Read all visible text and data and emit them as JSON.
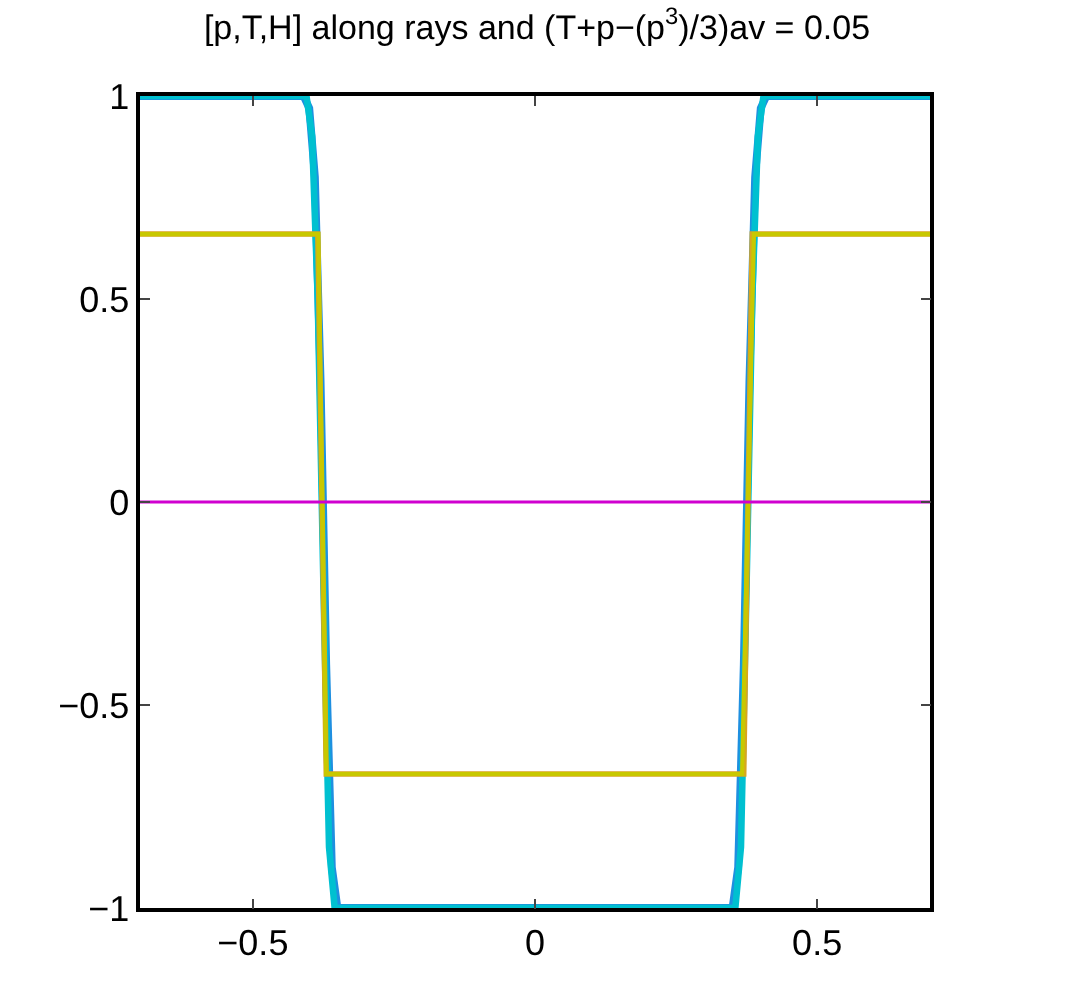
{
  "chart_data": {
    "type": "line",
    "title": "[p,T,H] along rays and (T+p−(p$^{3}$)/3)av = 0.05",
    "xlim": [
      -0.7,
      0.7
    ],
    "ylim": [
      -1,
      1
    ],
    "xticks": [
      {
        "value": -0.5,
        "label": "−0.5"
      },
      0,
      0.5
    ],
    "yticks": [
      {
        "value": -1,
        "label": "−1"
      },
      {
        "value": -0.5,
        "label": "−0.5"
      },
      0,
      0.5,
      1
    ],
    "legend": false,
    "marker": "none",
    "line_style": "solid",
    "series": [
      {
        "color": "#1f8fe0",
        "x": [
          -0.7,
          -0.41,
          -0.4,
          -0.39,
          -0.38,
          -0.37,
          -0.36,
          -0.35,
          0.35,
          0.36,
          0.37,
          0.38,
          0.39,
          0.4,
          0.41,
          0.7
        ],
        "values": [
          1,
          1,
          0.97,
          0.8,
          0.3,
          -0.4,
          -0.9,
          -1,
          -1,
          -0.9,
          -0.4,
          0.3,
          0.8,
          0.97,
          1,
          1
        ]
      },
      {
        "color": "#00c0d0",
        "x": [
          -0.7,
          -0.405,
          -0.395,
          -0.385,
          -0.375,
          -0.365,
          -0.355,
          0.355,
          0.365,
          0.375,
          0.385,
          0.395,
          0.405,
          0.7
        ],
        "values": [
          1,
          1,
          0.9,
          0.5,
          -0.2,
          -0.85,
          -1,
          -1,
          -0.85,
          -0.2,
          0.5,
          0.9,
          1,
          1
        ]
      },
      {
        "color": "#d9a520",
        "x": [
          -0.7,
          -0.385,
          -0.37,
          0.37,
          0.385,
          0.7
        ],
        "values": [
          0.66,
          0.66,
          -0.67,
          -0.67,
          0.66,
          0.66
        ]
      },
      {
        "color": "#c8c800",
        "x": [
          -0.7,
          -0.384,
          -0.37,
          0.367,
          0.388,
          0.7
        ],
        "values": [
          0.66,
          0.66,
          -0.67,
          -0.67,
          0.66,
          0.66
        ]
      },
      {
        "color": "#d000d0",
        "x": [
          -0.7,
          0.7
        ],
        "values": [
          0,
          0
        ]
      }
    ]
  }
}
